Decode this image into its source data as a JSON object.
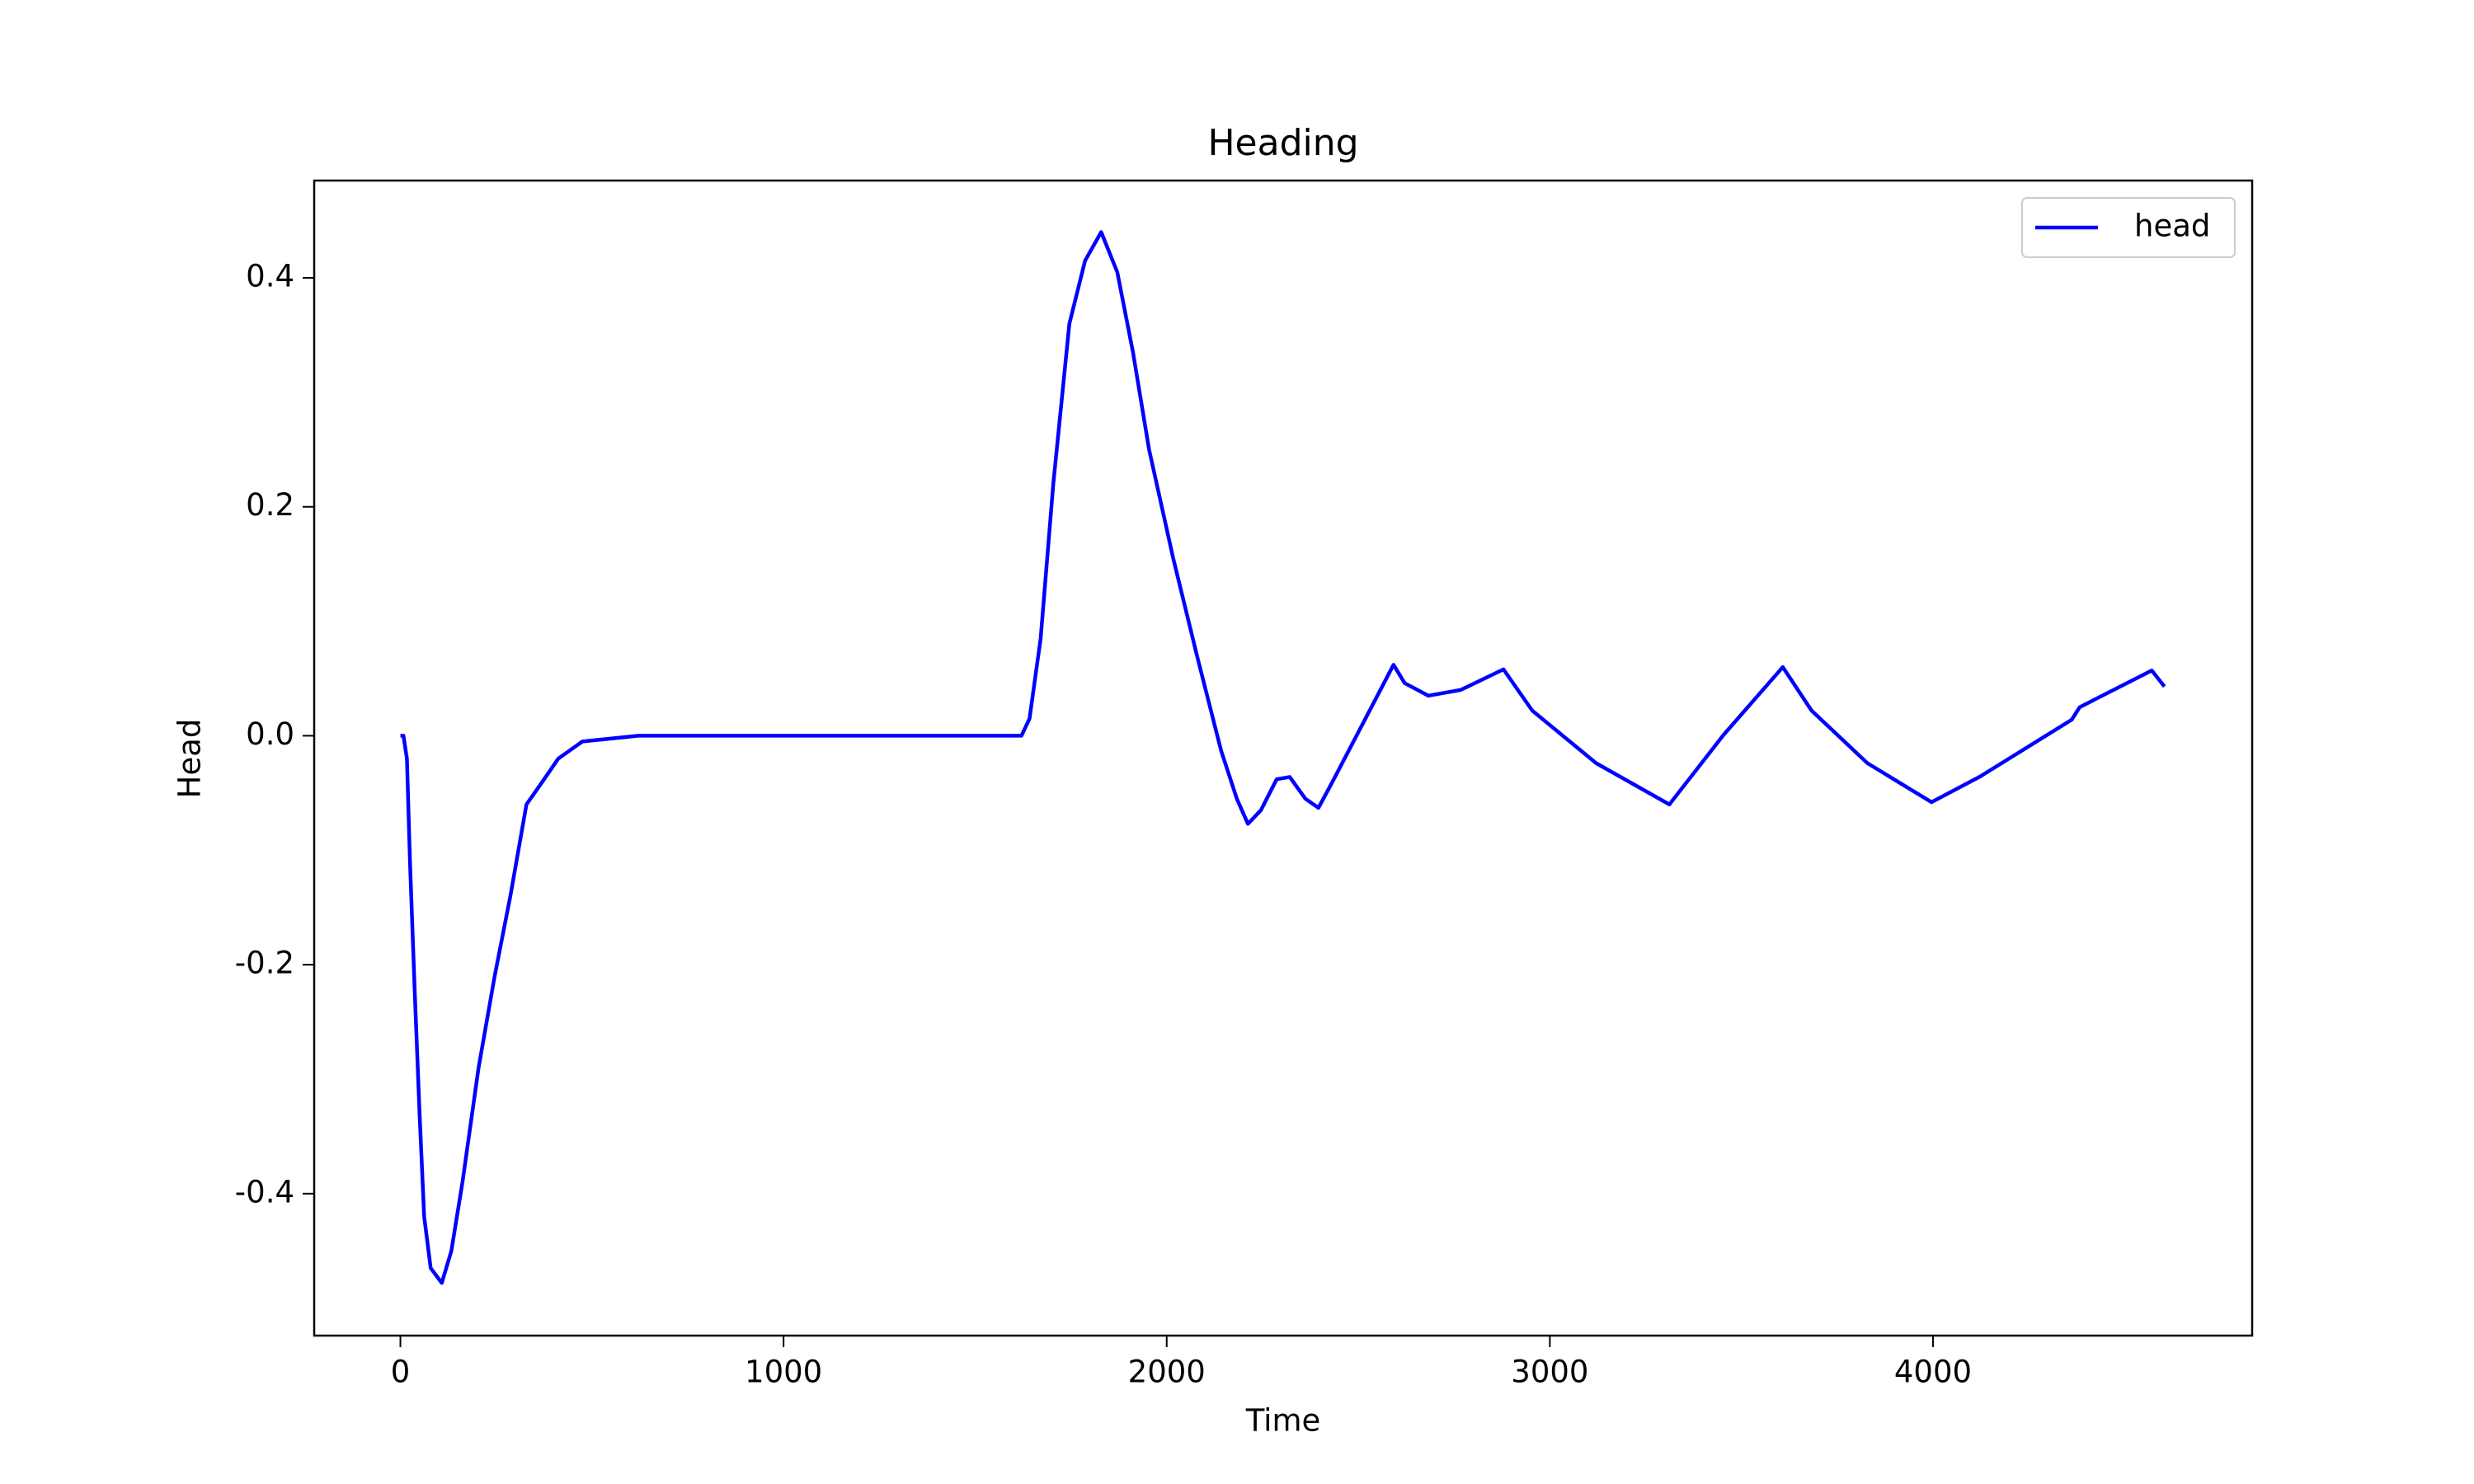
{
  "chart_data": {
    "type": "line",
    "title": "Heading",
    "x_label": "Time",
    "y_label": "Head",
    "x": [
      0,
      8,
      17,
      25,
      37,
      50,
      62,
      79,
      108,
      133,
      162,
      204,
      246,
      287,
      329,
      371,
      412,
      454,
      475,
      621,
      1621,
      1642,
      1671,
      1704,
      1746,
      1787,
      1829,
      1871,
      1912,
      1954,
      2017,
      2079,
      2142,
      2183,
      2212,
      2246,
      2287,
      2321,
      2362,
      2396,
      2433,
      2592,
      2621,
      2683,
      2767,
      2879,
      2954,
      3121,
      3312,
      3454,
      3608,
      3683,
      3829,
      3996,
      4121,
      4362,
      4383,
      4571,
      4604
    ],
    "series": [
      {
        "name": "head",
        "color": "#0000ff",
        "values": [
          0,
          0,
          -0.02,
          -0.11,
          -0.22,
          -0.33,
          -0.42,
          -0.465,
          -0.478,
          -0.45,
          -0.39,
          -0.29,
          -0.21,
          -0.14,
          -0.06,
          -0.04,
          -0.02,
          -0.01,
          -0.005,
          0,
          0,
          0.015,
          0.085,
          0.22,
          0.36,
          0.415,
          0.44,
          0.405,
          0.335,
          0.25,
          0.155,
          0.07,
          -0.013,
          -0.055,
          -0.077,
          -0.065,
          -0.038,
          -0.036,
          -0.055,
          -0.063,
          -0.04,
          0.062,
          0.046,
          0.035,
          0.04,
          0.058,
          0.022,
          -0.024,
          -0.06,
          0.001,
          0.06,
          0.022,
          -0.024,
          -0.058,
          -0.036,
          0.014,
          0.025,
          0.057,
          0.043
        ]
      }
    ],
    "xlim": [
      -225,
      4833
    ],
    "ylim": [
      -0.524,
      0.485
    ],
    "xticks": [
      0,
      1000,
      2000,
      3000,
      4000
    ],
    "yticks": [
      -0.4,
      -0.2,
      {
        "value": 0,
        "label": "0.0"
      },
      0.2,
      0.4
    ],
    "legend": "upper right"
  }
}
